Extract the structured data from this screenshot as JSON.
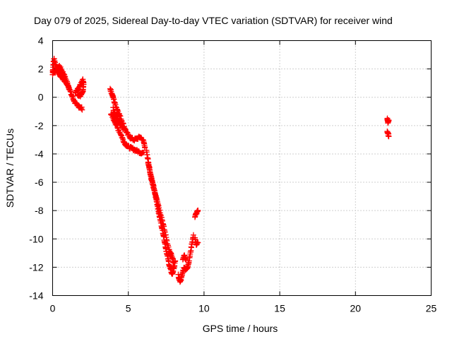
{
  "chart_data": {
    "type": "scatter",
    "title": "Day 079 of 2025, Sidereal Day-to-day VTEC variation (SDTVAR) for receiver wind",
    "xlabel": "GPS time / hours",
    "ylabel": "SDTVAR / TECUs",
    "xlim": [
      0,
      25
    ],
    "ylim": [
      -14,
      4
    ],
    "xticks": [
      0,
      5,
      10,
      15,
      20,
      25
    ],
    "yticks": [
      4,
      2,
      0,
      -2,
      -4,
      -6,
      -8,
      -10,
      -12,
      -14
    ],
    "xtick_labels": [
      "0",
      "5",
      "10",
      "15",
      "20",
      "25"
    ],
    "ytick_labels": [
      "4",
      "2",
      "0",
      "-2",
      "-4",
      "-6",
      "-8",
      "-10",
      "-12",
      "-14"
    ],
    "grid": true,
    "marker": "plus",
    "color": "#ff0000",
    "series": [
      {
        "name": "SDTVAR",
        "segments": [
          [
            [
              0.0,
              1.6
            ],
            [
              0.05,
              2.4
            ],
            [
              0.1,
              2.7
            ],
            [
              0.2,
              2.3
            ],
            [
              0.3,
              2.0
            ],
            [
              0.45,
              2.2
            ],
            [
              0.6,
              1.9
            ],
            [
              0.75,
              1.6
            ],
            [
              0.9,
              1.2
            ],
            [
              1.05,
              0.8
            ],
            [
              1.2,
              0.3
            ],
            [
              1.35,
              -0.1
            ],
            [
              1.5,
              -0.4
            ],
            [
              1.65,
              -0.6
            ],
            [
              1.8,
              -0.7
            ],
            [
              1.95,
              -0.8
            ]
          ],
          [
            [
              0.0,
              1.9
            ],
            [
              0.1,
              1.7
            ],
            [
              0.25,
              1.9
            ],
            [
              0.4,
              1.7
            ],
            [
              0.55,
              1.5
            ],
            [
              0.7,
              1.3
            ],
            [
              0.85,
              1.1
            ],
            [
              1.0,
              0.9
            ],
            [
              1.1,
              0.6
            ]
          ],
          [
            [
              1.5,
              0.3
            ],
            [
              1.6,
              0.5
            ],
            [
              1.7,
              0.6
            ],
            [
              1.8,
              0.8
            ],
            [
              1.9,
              1.0
            ],
            [
              2.0,
              1.2
            ],
            [
              2.05,
              0.9
            ],
            [
              2.0,
              0.4
            ],
            [
              1.9,
              0.2
            ],
            [
              1.8,
              0.1
            ],
            [
              1.65,
              0.2
            ]
          ],
          [
            [
              3.8,
              0.6
            ],
            [
              3.9,
              0.3
            ],
            [
              4.0,
              0.0
            ],
            [
              4.1,
              -0.4
            ],
            [
              4.25,
              -0.8
            ],
            [
              4.4,
              -1.2
            ],
            [
              4.55,
              -1.6
            ],
            [
              4.7,
              -2.0
            ],
            [
              4.85,
              -2.4
            ],
            [
              5.0,
              -2.7
            ],
            [
              5.2,
              -2.9
            ],
            [
              5.4,
              -3.0
            ],
            [
              5.6,
              -2.9
            ],
            [
              5.8,
              -2.8
            ],
            [
              6.0,
              -3.1
            ],
            [
              6.1,
              -3.5
            ]
          ],
          [
            [
              3.85,
              -1.2
            ],
            [
              4.0,
              -1.5
            ],
            [
              4.15,
              -1.8
            ],
            [
              4.3,
              -2.2
            ],
            [
              4.5,
              -2.6
            ],
            [
              4.65,
              -3.0
            ],
            [
              4.8,
              -3.3
            ],
            [
              5.0,
              -3.5
            ],
            [
              5.2,
              -3.6
            ],
            [
              5.4,
              -3.7
            ],
            [
              5.6,
              -3.8
            ],
            [
              5.8,
              -3.9
            ],
            [
              6.0,
              -3.9
            ]
          ],
          [
            [
              4.0,
              -0.8
            ],
            [
              4.1,
              -1.1
            ],
            [
              4.2,
              -1.4
            ],
            [
              4.35,
              -1.7
            ],
            [
              4.5,
              -1.9
            ],
            [
              4.65,
              -2.2
            ]
          ],
          [
            [
              6.2,
              -3.8
            ],
            [
              6.3,
              -4.4
            ],
            [
              6.4,
              -5.0
            ],
            [
              6.5,
              -5.7
            ],
            [
              6.6,
              -6.1
            ],
            [
              6.7,
              -6.5
            ],
            [
              6.8,
              -7.0
            ],
            [
              6.9,
              -7.5
            ],
            [
              7.0,
              -8.1
            ],
            [
              7.1,
              -8.6
            ],
            [
              7.2,
              -9.1
            ],
            [
              7.3,
              -9.6
            ],
            [
              7.4,
              -10.2
            ],
            [
              7.5,
              -10.8
            ],
            [
              7.6,
              -11.3
            ],
            [
              7.7,
              -11.8
            ],
            [
              7.8,
              -12.2
            ],
            [
              7.9,
              -12.5
            ],
            [
              8.0,
              -12.1
            ],
            [
              8.1,
              -11.6
            ]
          ],
          [
            [
              6.3,
              -4.6
            ],
            [
              6.45,
              -5.4
            ],
            [
              6.6,
              -6.0
            ],
            [
              6.75,
              -6.7
            ],
            [
              6.9,
              -7.2
            ],
            [
              7.05,
              -7.9
            ],
            [
              7.2,
              -8.5
            ],
            [
              7.35,
              -9.2
            ],
            [
              7.5,
              -9.9
            ],
            [
              7.65,
              -10.6
            ],
            [
              7.8,
              -11.2
            ]
          ],
          [
            [
              7.8,
              -11.0
            ],
            [
              7.9,
              -11.4
            ],
            [
              8.0,
              -11.7
            ]
          ],
          [
            [
              8.3,
              -12.6
            ],
            [
              8.4,
              -13.0
            ],
            [
              8.5,
              -12.8
            ],
            [
              8.6,
              -12.3
            ],
            [
              8.7,
              -12.0
            ],
            [
              8.8,
              -12.2
            ],
            [
              8.9,
              -12.0
            ],
            [
              9.0,
              -11.6
            ],
            [
              9.1,
              -11.0
            ],
            [
              9.2,
              -10.3
            ],
            [
              9.3,
              -9.8
            ]
          ],
          [
            [
              8.6,
              -11.4
            ],
            [
              8.7,
              -11.2
            ],
            [
              8.8,
              -11.5
            ]
          ],
          [
            [
              9.4,
              -10.0
            ],
            [
              9.5,
              -10.4
            ],
            [
              9.6,
              -10.2
            ]
          ],
          [
            [
              9.4,
              -8.4
            ],
            [
              9.5,
              -8.2
            ],
            [
              9.6,
              -8.0
            ]
          ],
          [
            [
              22.1,
              -1.5
            ],
            [
              22.15,
              -1.8
            ],
            [
              22.2,
              -1.6
            ]
          ],
          [
            [
              22.1,
              -2.4
            ],
            [
              22.15,
              -2.6
            ],
            [
              22.2,
              -2.7
            ]
          ]
        ]
      }
    ]
  }
}
